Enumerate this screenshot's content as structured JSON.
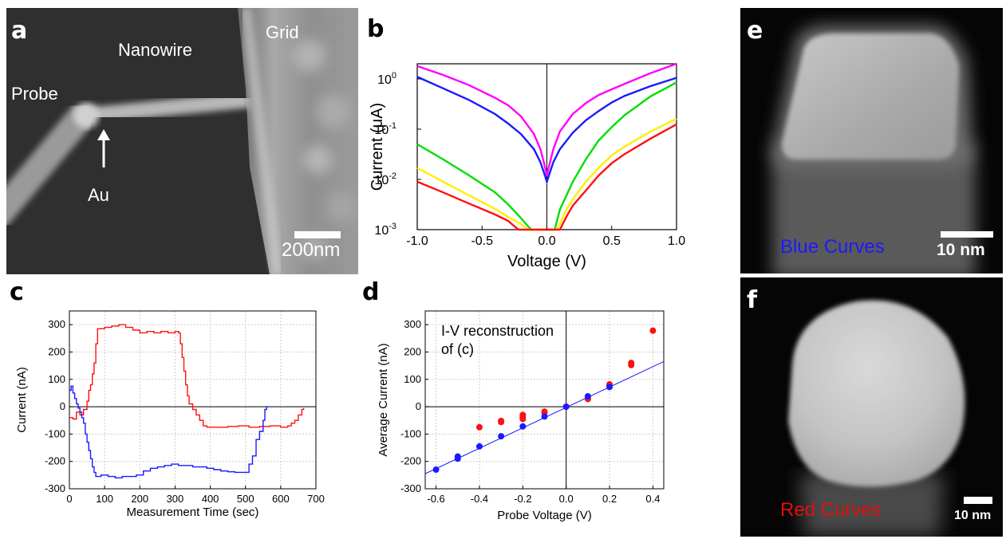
{
  "panel_letters": {
    "a": "a",
    "b": "b",
    "c": "c",
    "d": "d",
    "e": "e",
    "f": "f"
  },
  "panel_a": {
    "labels": {
      "probe": "Probe",
      "nanowire": "Nanowire",
      "grid": "Grid",
      "au": "Au"
    },
    "scale_bar": "200nm"
  },
  "panel_e": {
    "caption": "Blue Curves",
    "caption_color": "#1a1aff",
    "scale_bar": "10 nm"
  },
  "panel_f": {
    "caption": "Red Curves",
    "caption_color": "#e01010",
    "scale_bar": "10 nm"
  },
  "chart_data": [
    {
      "id": "b",
      "type": "line",
      "xlabel": "Voltage (V)",
      "ylabel": "Current (μA)",
      "xlim": [
        -1.0,
        1.0
      ],
      "ylim": [
        0.001,
        2
      ],
      "yscale": "log",
      "xticks": [
        "-1.0",
        "-0.5",
        "0.0",
        "0.5",
        "1.0"
      ],
      "yticks": [
        {
          "value": 0.001,
          "base": "10",
          "exp": "-3"
        },
        {
          "value": 0.01,
          "base": "10",
          "exp": "-2"
        },
        {
          "value": 0.1,
          "base": "10",
          "exp": "-1"
        },
        {
          "value": 1,
          "base": "10",
          "exp": "0"
        }
      ],
      "grid": false,
      "series": [
        {
          "color": "#ff00ff",
          "points": [
            [
              -1.0,
              1.8
            ],
            [
              -0.8,
              1.2
            ],
            [
              -0.6,
              0.75
            ],
            [
              -0.4,
              0.42
            ],
            [
              -0.3,
              0.3
            ],
            [
              -0.2,
              0.18
            ],
            [
              -0.1,
              0.08
            ],
            [
              -0.05,
              0.04
            ],
            [
              -0.02,
              0.02
            ],
            [
              0.0,
              0.012
            ],
            [
              0.02,
              0.02
            ],
            [
              0.05,
              0.04
            ],
            [
              0.1,
              0.09
            ],
            [
              0.2,
              0.2
            ],
            [
              0.3,
              0.33
            ],
            [
              0.4,
              0.48
            ],
            [
              0.5,
              0.62
            ],
            [
              0.6,
              0.8
            ],
            [
              0.8,
              1.3
            ],
            [
              1.0,
              2.0
            ]
          ]
        },
        {
          "color": "#1a1aff",
          "points": [
            [
              -1.0,
              1.1
            ],
            [
              -0.8,
              0.65
            ],
            [
              -0.6,
              0.38
            ],
            [
              -0.4,
              0.2
            ],
            [
              -0.3,
              0.13
            ],
            [
              -0.2,
              0.08
            ],
            [
              -0.1,
              0.04
            ],
            [
              -0.05,
              0.022
            ],
            [
              -0.02,
              0.013
            ],
            [
              0.0,
              0.009
            ],
            [
              0.02,
              0.013
            ],
            [
              0.05,
              0.022
            ],
            [
              0.1,
              0.04
            ],
            [
              0.2,
              0.085
            ],
            [
              0.3,
              0.15
            ],
            [
              0.4,
              0.23
            ],
            [
              0.5,
              0.34
            ],
            [
              0.6,
              0.46
            ],
            [
              0.8,
              0.72
            ],
            [
              1.0,
              1.05
            ]
          ]
        },
        {
          "color": "#00dd00",
          "points": [
            [
              -1.0,
              0.05
            ],
            [
              -0.8,
              0.025
            ],
            [
              -0.6,
              0.012
            ],
            [
              -0.4,
              0.0055
            ],
            [
              -0.3,
              0.0032
            ],
            [
              -0.2,
              0.0017
            ],
            [
              -0.15,
              0.0012
            ],
            [
              -0.12,
              0.001
            ],
            [
              0.06,
              0.001
            ],
            [
              0.1,
              0.0025
            ],
            [
              0.2,
              0.009
            ],
            [
              0.3,
              0.025
            ],
            [
              0.4,
              0.06
            ],
            [
              0.5,
              0.11
            ],
            [
              0.6,
              0.19
            ],
            [
              0.8,
              0.45
            ],
            [
              1.0,
              0.85
            ]
          ]
        },
        {
          "color": "#ffee00",
          "points": [
            [
              -1.0,
              0.017
            ],
            [
              -0.8,
              0.009
            ],
            [
              -0.6,
              0.0048
            ],
            [
              -0.4,
              0.0026
            ],
            [
              -0.3,
              0.0018
            ],
            [
              -0.2,
              0.0013
            ],
            [
              -0.15,
              0.001
            ],
            [
              0.08,
              0.001
            ],
            [
              0.15,
              0.0025
            ],
            [
              0.2,
              0.004
            ],
            [
              0.3,
              0.009
            ],
            [
              0.4,
              0.017
            ],
            [
              0.5,
              0.03
            ],
            [
              0.6,
              0.045
            ],
            [
              0.8,
              0.09
            ],
            [
              1.0,
              0.16
            ]
          ]
        },
        {
          "color": "#ff1010",
          "points": [
            [
              -1.0,
              0.009
            ],
            [
              -0.8,
              0.0055
            ],
            [
              -0.6,
              0.0033
            ],
            [
              -0.4,
              0.002
            ],
            [
              -0.3,
              0.0015
            ],
            [
              -0.22,
              0.001
            ],
            [
              0.1,
              0.001
            ],
            [
              0.15,
              0.0018
            ],
            [
              0.2,
              0.003
            ],
            [
              0.3,
              0.006
            ],
            [
              0.4,
              0.012
            ],
            [
              0.5,
              0.021
            ],
            [
              0.6,
              0.032
            ],
            [
              0.8,
              0.065
            ],
            [
              1.0,
              0.125
            ]
          ]
        }
      ]
    },
    {
      "id": "c",
      "type": "line",
      "xlabel": "Measurement Time (sec)",
      "ylabel": "Current (nA)",
      "xlim": [
        0,
        700
      ],
      "ylim": [
        -300,
        350
      ],
      "xticks": [
        "0",
        "100",
        "200",
        "300",
        "400",
        "500",
        "600",
        "700"
      ],
      "yticks": [
        "-300",
        "-200",
        "-100",
        "0",
        "100",
        "200",
        "300"
      ],
      "grid": true,
      "series": [
        {
          "color": "#ff1010",
          "points": [
            [
              0,
              -40
            ],
            [
              10,
              -45
            ],
            [
              20,
              -20
            ],
            [
              30,
              -30
            ],
            [
              40,
              -10
            ],
            [
              50,
              20
            ],
            [
              55,
              60
            ],
            [
              60,
              80
            ],
            [
              65,
              120
            ],
            [
              70,
              160
            ],
            [
              75,
              230
            ],
            [
              80,
              285
            ],
            [
              100,
              290
            ],
            [
              120,
              295
            ],
            [
              140,
              300
            ],
            [
              160,
              290
            ],
            [
              180,
              280
            ],
            [
              200,
              270
            ],
            [
              220,
              275
            ],
            [
              240,
              270
            ],
            [
              260,
              275
            ],
            [
              280,
              270
            ],
            [
              300,
              275
            ],
            [
              310,
              270
            ],
            [
              315,
              230
            ],
            [
              320,
              180
            ],
            [
              325,
              130
            ],
            [
              330,
              80
            ],
            [
              335,
              40
            ],
            [
              340,
              10
            ],
            [
              350,
              -10
            ],
            [
              360,
              -30
            ],
            [
              370,
              -50
            ],
            [
              380,
              -70
            ],
            [
              390,
              -75
            ],
            [
              420,
              -75
            ],
            [
              450,
              -72
            ],
            [
              480,
              -70
            ],
            [
              510,
              -75
            ],
            [
              540,
              -72
            ],
            [
              570,
              -70
            ],
            [
              600,
              -75
            ],
            [
              620,
              -70
            ],
            [
              630,
              -60
            ],
            [
              640,
              -50
            ],
            [
              650,
              -30
            ],
            [
              660,
              -10
            ],
            [
              665,
              -5
            ]
          ]
        },
        {
          "color": "#1a1aff",
          "points": [
            [
              0,
              60
            ],
            [
              5,
              75
            ],
            [
              10,
              50
            ],
            [
              15,
              30
            ],
            [
              20,
              10
            ],
            [
              25,
              -5
            ],
            [
              30,
              -20
            ],
            [
              35,
              -40
            ],
            [
              40,
              -60
            ],
            [
              45,
              -100
            ],
            [
              50,
              -130
            ],
            [
              55,
              -160
            ],
            [
              60,
              -190
            ],
            [
              65,
              -220
            ],
            [
              70,
              -240
            ],
            [
              75,
              -255
            ],
            [
              90,
              -250
            ],
            [
              110,
              -255
            ],
            [
              130,
              -260
            ],
            [
              150,
              -255
            ],
            [
              170,
              -255
            ],
            [
              190,
              -250
            ],
            [
              210,
              -235
            ],
            [
              230,
              -225
            ],
            [
              250,
              -220
            ],
            [
              270,
              -215
            ],
            [
              290,
              -210
            ],
            [
              310,
              -215
            ],
            [
              330,
              -215
            ],
            [
              350,
              -220
            ],
            [
              370,
              -220
            ],
            [
              390,
              -225
            ],
            [
              410,
              -230
            ],
            [
              430,
              -235
            ],
            [
              450,
              -238
            ],
            [
              470,
              -240
            ],
            [
              490,
              -240
            ],
            [
              505,
              -240
            ],
            [
              510,
              -210
            ],
            [
              520,
              -180
            ],
            [
              530,
              -120
            ],
            [
              540,
              -90
            ],
            [
              550,
              -50
            ],
            [
              555,
              -10
            ],
            [
              560,
              0
            ],
            [
              565,
              0
            ]
          ]
        }
      ]
    },
    {
      "id": "d",
      "type": "scatter",
      "xlabel": "Probe Voltage (V)",
      "ylabel": "Average Current (nA)",
      "annotation": "I-V reconstruction\nof (c)",
      "xlim": [
        -0.65,
        0.45
      ],
      "ylim": [
        -300,
        350
      ],
      "xticks": [
        "-0.6",
        "-0.4",
        "-0.2",
        "0.0",
        "0.2",
        "0.4"
      ],
      "yticks": [
        "-300",
        "-200",
        "-100",
        "0",
        "100",
        "200",
        "300"
      ],
      "grid": true,
      "series": [
        {
          "color": "#ff1010",
          "points": [
            [
              -0.4,
              -75
            ],
            [
              -0.3,
              -52
            ],
            [
              -0.3,
              -56
            ],
            [
              -0.2,
              -30
            ],
            [
              -0.2,
              -38
            ],
            [
              -0.2,
              -45
            ],
            [
              -0.1,
              -18
            ],
            [
              -0.1,
              -22
            ],
            [
              0.0,
              0
            ],
            [
              0.1,
              28
            ],
            [
              0.1,
              32
            ],
            [
              0.2,
              78
            ],
            [
              0.2,
              82
            ],
            [
              0.3,
              152
            ],
            [
              0.3,
              160
            ],
            [
              0.4,
              278
            ]
          ]
        },
        {
          "color": "#1a1aff",
          "points": [
            [
              -0.6,
              -230
            ],
            [
              -0.5,
              -182
            ],
            [
              -0.5,
              -190
            ],
            [
              -0.4,
              -145
            ],
            [
              -0.3,
              -108
            ],
            [
              -0.2,
              -72
            ],
            [
              -0.1,
              -36
            ],
            [
              0.0,
              0
            ],
            [
              0.1,
              38
            ],
            [
              0.2,
              72
            ]
          ]
        }
      ],
      "fit_line": {
        "color": "#1a1aff",
        "from": [
          -0.65,
          -245
        ],
        "to": [
          0.45,
          165
        ]
      }
    }
  ]
}
